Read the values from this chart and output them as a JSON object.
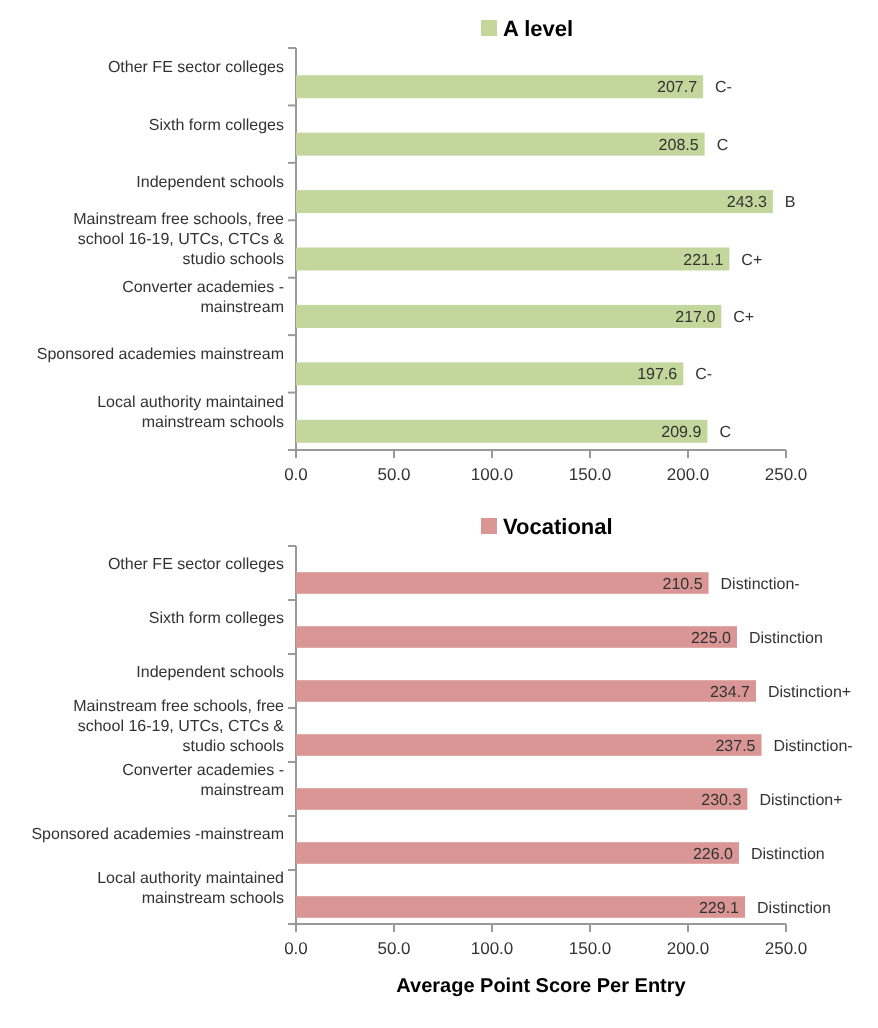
{
  "chart_data": [
    {
      "type": "bar",
      "orientation": "horizontal",
      "categories": [
        "Other FE sector colleges",
        "Sixth form colleges",
        "Independent schools",
        "Mainstream free schools, free school 16-19, UTCs, CTCs & studio schools",
        "Converter academies - mainstream",
        "Sponsored academies  mainstream",
        "Local authority maintained mainstream schools"
      ],
      "series": [
        {
          "name": "A level",
          "color": "#c3d69b",
          "values": [
            207.7,
            208.5,
            243.3,
            221.1,
            217.0,
            197.6,
            209.9
          ],
          "value_labels": [
            "207.7",
            "208.5",
            "243.3",
            "221.1",
            "217.0",
            "197.6",
            "209.9"
          ]
        }
      ],
      "xlim": [
        0,
        250
      ],
      "xticks": [
        {
          "value": 0,
          "label": "0.0"
        },
        {
          "value": 50,
          "label": "50.0"
        },
        {
          "value": 100,
          "label": "100.0"
        },
        {
          "value": 150,
          "label": "150.0"
        },
        {
          "value": 200,
          "label": "200.0"
        },
        {
          "value": 250,
          "label": "250.0"
        }
      ],
      "legend": "top",
      "annotations": [
        {
          "text": "C-",
          "x": 207.7,
          "y": "Other FE sector colleges"
        },
        {
          "text": "C",
          "x": 208.5,
          "y": "Sixth form colleges"
        },
        {
          "text": "B",
          "x": 243.3,
          "y": "Independent schools"
        },
        {
          "text": "C+",
          "x": 221.1,
          "y": "Mainstream free schools, free school 16-19, UTCs, CTCs & studio schools"
        },
        {
          "text": "C+",
          "x": 217.0,
          "y": "Converter academies - mainstream"
        },
        {
          "text": "C-",
          "x": 197.6,
          "y": "Sponsored academies  mainstream"
        },
        {
          "text": "C",
          "x": 209.9,
          "y": "Local authority maintained mainstream schools"
        }
      ]
    },
    {
      "type": "bar",
      "orientation": "horizontal",
      "categories": [
        "Other FE sector colleges",
        "Sixth form colleges",
        "Independent schools",
        "Mainstream free schools, free school 16-19, UTCs, CTCs & studio schools",
        "Converter academies - mainstream",
        "Sponsored academies -mainstream",
        "Local authority maintained mainstream schools"
      ],
      "series": [
        {
          "name": "Vocational",
          "color": "#d99694",
          "values": [
            210.5,
            225.0,
            234.7,
            237.5,
            230.3,
            226.0,
            229.1
          ],
          "value_labels": [
            "210.5",
            "225.0",
            "234.7",
            "237.5",
            "230.3",
            "226.0",
            "229.1"
          ]
        }
      ],
      "xlim": [
        0,
        250
      ],
      "xticks": [
        {
          "value": 0,
          "label": "0.0"
        },
        {
          "value": 50,
          "label": "50.0"
        },
        {
          "value": 100,
          "label": "100.0"
        },
        {
          "value": 150,
          "label": "150.0"
        },
        {
          "value": 200,
          "label": "200.0"
        },
        {
          "value": 250,
          "label": "250.0"
        }
      ],
      "xlabel": "Average Point Score Per Entry",
      "legend": "top",
      "annotations": [
        {
          "text": "Distinction-",
          "x": 210.5,
          "y": "Other FE sector colleges"
        },
        {
          "text": "Distinction",
          "x": 225.0,
          "y": "Sixth form colleges"
        },
        {
          "text": "Distinction+",
          "x": 234.7,
          "y": "Independent schools"
        },
        {
          "text": "Distinction-",
          "x": 237.5,
          "y": "Mainstream free schools, free school 16-19, UTCs, CTCs & studio schools"
        },
        {
          "text": "Distinction+",
          "x": 230.3,
          "y": "Converter academies - mainstream"
        },
        {
          "text": "Distinction",
          "x": 226.0,
          "y": "Sponsored academies -mainstream"
        },
        {
          "text": "Distinction",
          "x": 229.1,
          "y": "Local authority maintained mainstream schools"
        }
      ]
    }
  ]
}
